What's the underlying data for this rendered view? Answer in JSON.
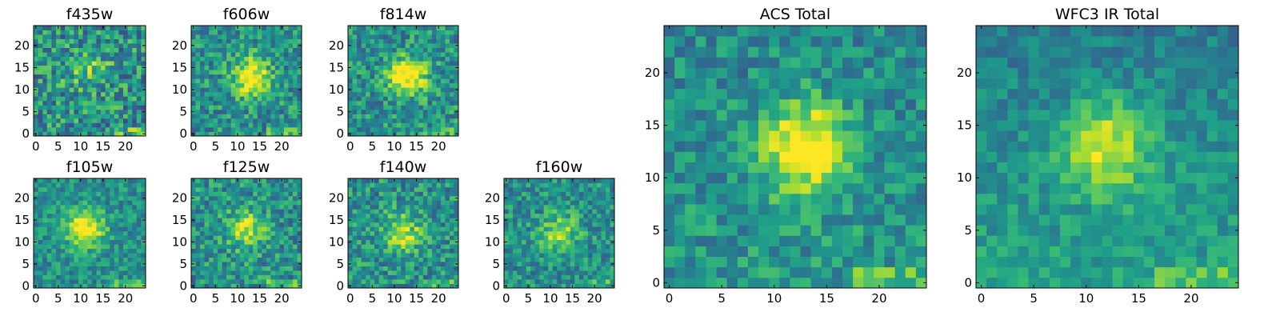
{
  "chart_data": [
    {
      "type": "heatmap",
      "title": "f435w",
      "xlim": [
        0,
        24
      ],
      "ylim": [
        0,
        24
      ],
      "xticks": [
        0,
        5,
        10,
        15,
        20
      ],
      "yticks": [
        0,
        5,
        10,
        15,
        20
      ],
      "grid": 25,
      "center": [
        12,
        14
      ],
      "peak_strength": 0.25,
      "noise": 0.55,
      "colormap": "viridis"
    },
    {
      "type": "heatmap",
      "title": "f606w",
      "xlim": [
        0,
        24
      ],
      "ylim": [
        0,
        24
      ],
      "xticks": [
        0,
        5,
        10,
        15,
        20
      ],
      "yticks": [
        0,
        5,
        10,
        15,
        20
      ],
      "grid": 25,
      "center": [
        13,
        13
      ],
      "peak_strength": 0.55,
      "noise": 0.45,
      "colormap": "viridis"
    },
    {
      "type": "heatmap",
      "title": "f814w",
      "xlim": [
        0,
        24
      ],
      "ylim": [
        0,
        24
      ],
      "xticks": [
        0,
        5,
        10,
        15,
        20
      ],
      "yticks": [
        0,
        5,
        10,
        15,
        20
      ],
      "grid": 25,
      "center": [
        13,
        13
      ],
      "peak_strength": 0.6,
      "noise": 0.45,
      "colormap": "viridis"
    },
    {
      "type": "heatmap",
      "title": "f105w",
      "xlim": [
        0,
        24
      ],
      "ylim": [
        0,
        24
      ],
      "xticks": [
        0,
        5,
        10,
        15,
        20
      ],
      "yticks": [
        0,
        5,
        10,
        15,
        20
      ],
      "grid": 25,
      "center": [
        11,
        13
      ],
      "peak_strength": 0.55,
      "noise": 0.35,
      "colormap": "viridis"
    },
    {
      "type": "heatmap",
      "title": "f125w",
      "xlim": [
        0,
        24
      ],
      "ylim": [
        0,
        24
      ],
      "xticks": [
        0,
        5,
        10,
        15,
        20
      ],
      "yticks": [
        0,
        5,
        10,
        15,
        20
      ],
      "grid": 25,
      "center": [
        12,
        13
      ],
      "peak_strength": 0.45,
      "noise": 0.45,
      "colormap": "viridis"
    },
    {
      "type": "heatmap",
      "title": "f140w",
      "xlim": [
        0,
        24
      ],
      "ylim": [
        0,
        24
      ],
      "xticks": [
        0,
        5,
        10,
        15,
        20
      ],
      "yticks": [
        0,
        5,
        10,
        15,
        20
      ],
      "grid": 25,
      "center": [
        12,
        12
      ],
      "peak_strength": 0.4,
      "noise": 0.45,
      "colormap": "viridis"
    },
    {
      "type": "heatmap",
      "title": "f160w",
      "xlim": [
        0,
        24
      ],
      "ylim": [
        0,
        24
      ],
      "xticks": [
        0,
        5,
        10,
        15,
        20
      ],
      "yticks": [
        0,
        5,
        10,
        15,
        20
      ],
      "grid": 25,
      "center": [
        12,
        12
      ],
      "peak_strength": 0.35,
      "noise": 0.4,
      "colormap": "viridis"
    },
    {
      "type": "heatmap",
      "title": "ACS Total",
      "xlim": [
        0,
        24
      ],
      "ylim": [
        0,
        24
      ],
      "xticks": [
        0,
        5,
        10,
        15,
        20
      ],
      "yticks": [
        0,
        5,
        10,
        15,
        20
      ],
      "grid": 25,
      "center": [
        13,
        13
      ],
      "peak_strength": 0.6,
      "noise": 0.35,
      "colormap": "viridis"
    },
    {
      "type": "heatmap",
      "title": "WFC3 IR Total",
      "xlim": [
        0,
        24
      ],
      "ylim": [
        0,
        24
      ],
      "xticks": [
        0,
        5,
        10,
        15,
        20
      ],
      "yticks": [
        0,
        5,
        10,
        15,
        20
      ],
      "grid": 25,
      "center": [
        12,
        13
      ],
      "peak_strength": 0.45,
      "noise": 0.25,
      "colormap": "viridis"
    }
  ]
}
